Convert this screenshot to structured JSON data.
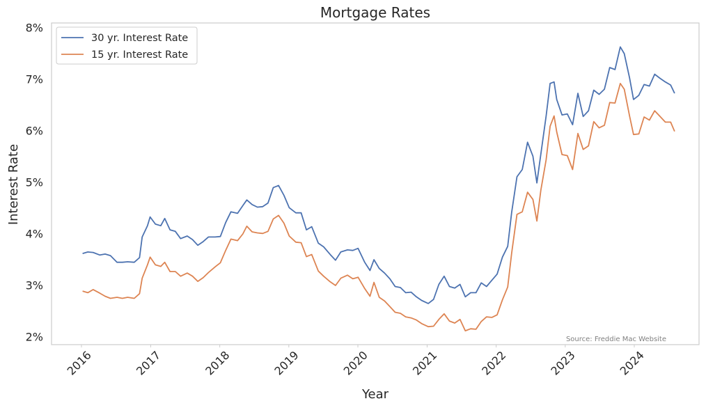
{
  "chart_data": {
    "type": "line",
    "title": "Mortgage Rates",
    "xlabel": "Year",
    "ylabel": "Interest Rate",
    "x_ticks": [
      "2016",
      "2017",
      "2018",
      "2019",
      "2020",
      "2021",
      "2022",
      "2023",
      "2024"
    ],
    "y_ticks": [
      "2%",
      "3%",
      "4%",
      "5%",
      "6%",
      "7%",
      "8%"
    ],
    "ylim": [
      2,
      8
    ],
    "grid": false,
    "legend_position": "top-left",
    "source_note": "Source: Freddie Mac Website",
    "x_unit": "date",
    "series": [
      {
        "name": "30 yr. Interest Rate",
        "color": "#4c72b0",
        "points": [
          [
            "2016-01-07",
            3.62
          ],
          [
            "2016-02-04",
            3.65
          ],
          [
            "2016-03-03",
            3.64
          ],
          [
            "2016-04-07",
            3.59
          ],
          [
            "2016-05-05",
            3.61
          ],
          [
            "2016-06-02",
            3.58
          ],
          [
            "2016-07-07",
            3.45
          ],
          [
            "2016-08-04",
            3.45
          ],
          [
            "2016-09-01",
            3.46
          ],
          [
            "2016-10-06",
            3.45
          ],
          [
            "2016-11-03",
            3.54
          ],
          [
            "2016-11-17",
            3.94
          ],
          [
            "2016-12-15",
            4.16
          ],
          [
            "2016-12-29",
            4.33
          ],
          [
            "2017-01-26",
            4.19
          ],
          [
            "2017-02-23",
            4.16
          ],
          [
            "2017-03-16",
            4.3
          ],
          [
            "2017-04-13",
            4.08
          ],
          [
            "2017-05-11",
            4.05
          ],
          [
            "2017-06-08",
            3.91
          ],
          [
            "2017-07-13",
            3.96
          ],
          [
            "2017-08-10",
            3.89
          ],
          [
            "2017-09-07",
            3.78
          ],
          [
            "2017-10-05",
            3.85
          ],
          [
            "2017-11-02",
            3.94
          ],
          [
            "2017-12-07",
            3.94
          ],
          [
            "2018-01-04",
            3.95
          ],
          [
            "2018-02-01",
            4.22
          ],
          [
            "2018-03-01",
            4.43
          ],
          [
            "2018-04-05",
            4.4
          ],
          [
            "2018-05-03",
            4.55
          ],
          [
            "2018-05-24",
            4.66
          ],
          [
            "2018-06-21",
            4.57
          ],
          [
            "2018-07-19",
            4.52
          ],
          [
            "2018-08-16",
            4.53
          ],
          [
            "2018-09-13",
            4.6
          ],
          [
            "2018-10-11",
            4.9
          ],
          [
            "2018-11-08",
            4.94
          ],
          [
            "2018-12-06",
            4.75
          ],
          [
            "2019-01-03",
            4.51
          ],
          [
            "2019-02-07",
            4.41
          ],
          [
            "2019-03-07",
            4.41
          ],
          [
            "2019-04-04",
            4.08
          ],
          [
            "2019-05-02",
            4.14
          ],
          [
            "2019-06-06",
            3.82
          ],
          [
            "2019-07-04",
            3.75
          ],
          [
            "2019-08-08",
            3.6
          ],
          [
            "2019-09-05",
            3.49
          ],
          [
            "2019-10-03",
            3.65
          ],
          [
            "2019-11-07",
            3.69
          ],
          [
            "2019-12-05",
            3.68
          ],
          [
            "2020-01-02",
            3.72
          ],
          [
            "2020-02-06",
            3.45
          ],
          [
            "2020-03-05",
            3.29
          ],
          [
            "2020-03-26",
            3.5
          ],
          [
            "2020-04-23",
            3.33
          ],
          [
            "2020-05-21",
            3.24
          ],
          [
            "2020-06-18",
            3.13
          ],
          [
            "2020-07-16",
            2.98
          ],
          [
            "2020-08-13",
            2.96
          ],
          [
            "2020-09-10",
            2.86
          ],
          [
            "2020-10-08",
            2.87
          ],
          [
            "2020-11-05",
            2.78
          ],
          [
            "2020-12-03",
            2.71
          ],
          [
            "2021-01-07",
            2.65
          ],
          [
            "2021-02-04",
            2.73
          ],
          [
            "2021-03-04",
            3.02
          ],
          [
            "2021-04-01",
            3.18
          ],
          [
            "2021-04-29",
            2.98
          ],
          [
            "2021-05-27",
            2.95
          ],
          [
            "2021-06-24",
            3.02
          ],
          [
            "2021-07-22",
            2.78
          ],
          [
            "2021-08-19",
            2.86
          ],
          [
            "2021-09-16",
            2.86
          ],
          [
            "2021-10-14",
            3.05
          ],
          [
            "2021-11-11",
            2.98
          ],
          [
            "2021-12-09",
            3.1
          ],
          [
            "2022-01-06",
            3.22
          ],
          [
            "2022-02-03",
            3.55
          ],
          [
            "2022-03-03",
            3.76
          ],
          [
            "2022-03-24",
            4.42
          ],
          [
            "2022-04-21",
            5.11
          ],
          [
            "2022-05-19",
            5.25
          ],
          [
            "2022-06-16",
            5.78
          ],
          [
            "2022-07-14",
            5.51
          ],
          [
            "2022-08-04",
            4.99
          ],
          [
            "2022-08-25",
            5.55
          ],
          [
            "2022-09-22",
            6.29
          ],
          [
            "2022-10-13",
            6.92
          ],
          [
            "2022-11-03",
            6.95
          ],
          [
            "2022-11-17",
            6.61
          ],
          [
            "2022-12-15",
            6.31
          ],
          [
            "2023-01-12",
            6.33
          ],
          [
            "2023-02-09",
            6.12
          ],
          [
            "2023-03-09",
            6.73
          ],
          [
            "2023-04-06",
            6.28
          ],
          [
            "2023-05-04",
            6.39
          ],
          [
            "2023-06-01",
            6.79
          ],
          [
            "2023-06-29",
            6.71
          ],
          [
            "2023-07-27",
            6.81
          ],
          [
            "2023-08-24",
            7.23
          ],
          [
            "2023-09-21",
            7.19
          ],
          [
            "2023-10-19",
            7.63
          ],
          [
            "2023-11-09",
            7.5
          ],
          [
            "2023-12-07",
            7.03
          ],
          [
            "2023-12-28",
            6.61
          ],
          [
            "2024-01-25",
            6.69
          ],
          [
            "2024-02-22",
            6.9
          ],
          [
            "2024-03-21",
            6.87
          ],
          [
            "2024-04-18",
            7.1
          ],
          [
            "2024-05-16",
            7.02
          ],
          [
            "2024-06-13",
            6.95
          ],
          [
            "2024-07-11",
            6.89
          ],
          [
            "2024-08-01",
            6.73
          ]
        ]
      },
      {
        "name": "15 yr. Interest Rate",
        "color": "#dd8452",
        "points": [
          [
            "2016-01-07",
            2.89
          ],
          [
            "2016-02-04",
            2.86
          ],
          [
            "2016-03-03",
            2.92
          ],
          [
            "2016-04-07",
            2.85
          ],
          [
            "2016-05-05",
            2.79
          ],
          [
            "2016-06-02",
            2.75
          ],
          [
            "2016-07-07",
            2.77
          ],
          [
            "2016-08-04",
            2.75
          ],
          [
            "2016-09-01",
            2.77
          ],
          [
            "2016-10-06",
            2.75
          ],
          [
            "2016-11-03",
            2.84
          ],
          [
            "2016-11-17",
            3.14
          ],
          [
            "2016-12-15",
            3.4
          ],
          [
            "2016-12-29",
            3.55
          ],
          [
            "2017-01-26",
            3.4
          ],
          [
            "2017-02-23",
            3.37
          ],
          [
            "2017-03-16",
            3.45
          ],
          [
            "2017-04-13",
            3.27
          ],
          [
            "2017-05-11",
            3.27
          ],
          [
            "2017-06-08",
            3.18
          ],
          [
            "2017-07-13",
            3.24
          ],
          [
            "2017-08-10",
            3.18
          ],
          [
            "2017-09-07",
            3.08
          ],
          [
            "2017-10-05",
            3.15
          ],
          [
            "2017-11-02",
            3.25
          ],
          [
            "2017-12-07",
            3.36
          ],
          [
            "2018-01-04",
            3.44
          ],
          [
            "2018-02-01",
            3.68
          ],
          [
            "2018-03-01",
            3.9
          ],
          [
            "2018-04-05",
            3.87
          ],
          [
            "2018-05-03",
            4.0
          ],
          [
            "2018-05-24",
            4.15
          ],
          [
            "2018-06-21",
            4.04
          ],
          [
            "2018-07-19",
            4.02
          ],
          [
            "2018-08-16",
            4.01
          ],
          [
            "2018-09-13",
            4.05
          ],
          [
            "2018-10-11",
            4.29
          ],
          [
            "2018-11-08",
            4.36
          ],
          [
            "2018-12-06",
            4.21
          ],
          [
            "2019-01-03",
            3.96
          ],
          [
            "2019-02-07",
            3.84
          ],
          [
            "2019-03-07",
            3.83
          ],
          [
            "2019-04-04",
            3.56
          ],
          [
            "2019-05-02",
            3.6
          ],
          [
            "2019-06-06",
            3.28
          ],
          [
            "2019-07-04",
            3.18
          ],
          [
            "2019-08-08",
            3.07
          ],
          [
            "2019-09-05",
            3.0
          ],
          [
            "2019-10-03",
            3.14
          ],
          [
            "2019-11-07",
            3.2
          ],
          [
            "2019-12-05",
            3.13
          ],
          [
            "2020-01-02",
            3.16
          ],
          [
            "2020-02-06",
            2.94
          ],
          [
            "2020-03-05",
            2.79
          ],
          [
            "2020-03-26",
            3.06
          ],
          [
            "2020-04-23",
            2.77
          ],
          [
            "2020-05-21",
            2.7
          ],
          [
            "2020-06-18",
            2.59
          ],
          [
            "2020-07-16",
            2.48
          ],
          [
            "2020-08-13",
            2.46
          ],
          [
            "2020-09-10",
            2.39
          ],
          [
            "2020-10-08",
            2.37
          ],
          [
            "2020-11-05",
            2.33
          ],
          [
            "2020-12-03",
            2.26
          ],
          [
            "2021-01-07",
            2.2
          ],
          [
            "2021-02-04",
            2.21
          ],
          [
            "2021-03-04",
            2.34
          ],
          [
            "2021-04-01",
            2.45
          ],
          [
            "2021-04-29",
            2.31
          ],
          [
            "2021-05-27",
            2.27
          ],
          [
            "2021-06-24",
            2.34
          ],
          [
            "2021-07-22",
            2.12
          ],
          [
            "2021-08-19",
            2.16
          ],
          [
            "2021-09-16",
            2.15
          ],
          [
            "2021-10-14",
            2.3
          ],
          [
            "2021-11-11",
            2.39
          ],
          [
            "2021-12-09",
            2.38
          ],
          [
            "2022-01-06",
            2.43
          ],
          [
            "2022-02-03",
            2.72
          ],
          [
            "2022-03-03",
            2.97
          ],
          [
            "2022-03-24",
            3.63
          ],
          [
            "2022-04-21",
            4.38
          ],
          [
            "2022-05-19",
            4.43
          ],
          [
            "2022-06-16",
            4.81
          ],
          [
            "2022-07-14",
            4.67
          ],
          [
            "2022-08-04",
            4.25
          ],
          [
            "2022-08-25",
            4.85
          ],
          [
            "2022-09-22",
            5.44
          ],
          [
            "2022-10-13",
            6.09
          ],
          [
            "2022-11-03",
            6.29
          ],
          [
            "2022-11-17",
            5.98
          ],
          [
            "2022-12-15",
            5.54
          ],
          [
            "2023-01-12",
            5.52
          ],
          [
            "2023-02-09",
            5.25
          ],
          [
            "2023-03-09",
            5.95
          ],
          [
            "2023-04-06",
            5.64
          ],
          [
            "2023-05-04",
            5.71
          ],
          [
            "2023-06-01",
            6.18
          ],
          [
            "2023-06-29",
            6.06
          ],
          [
            "2023-07-27",
            6.11
          ],
          [
            "2023-08-24",
            6.55
          ],
          [
            "2023-09-21",
            6.54
          ],
          [
            "2023-10-19",
            6.92
          ],
          [
            "2023-11-09",
            6.81
          ],
          [
            "2023-12-07",
            6.29
          ],
          [
            "2023-12-28",
            5.93
          ],
          [
            "2024-01-25",
            5.94
          ],
          [
            "2024-02-22",
            6.27
          ],
          [
            "2024-03-21",
            6.21
          ],
          [
            "2024-04-18",
            6.39
          ],
          [
            "2024-05-16",
            6.28
          ],
          [
            "2024-06-13",
            6.17
          ],
          [
            "2024-07-11",
            6.17
          ],
          [
            "2024-08-01",
            5.99
          ]
        ]
      }
    ]
  }
}
